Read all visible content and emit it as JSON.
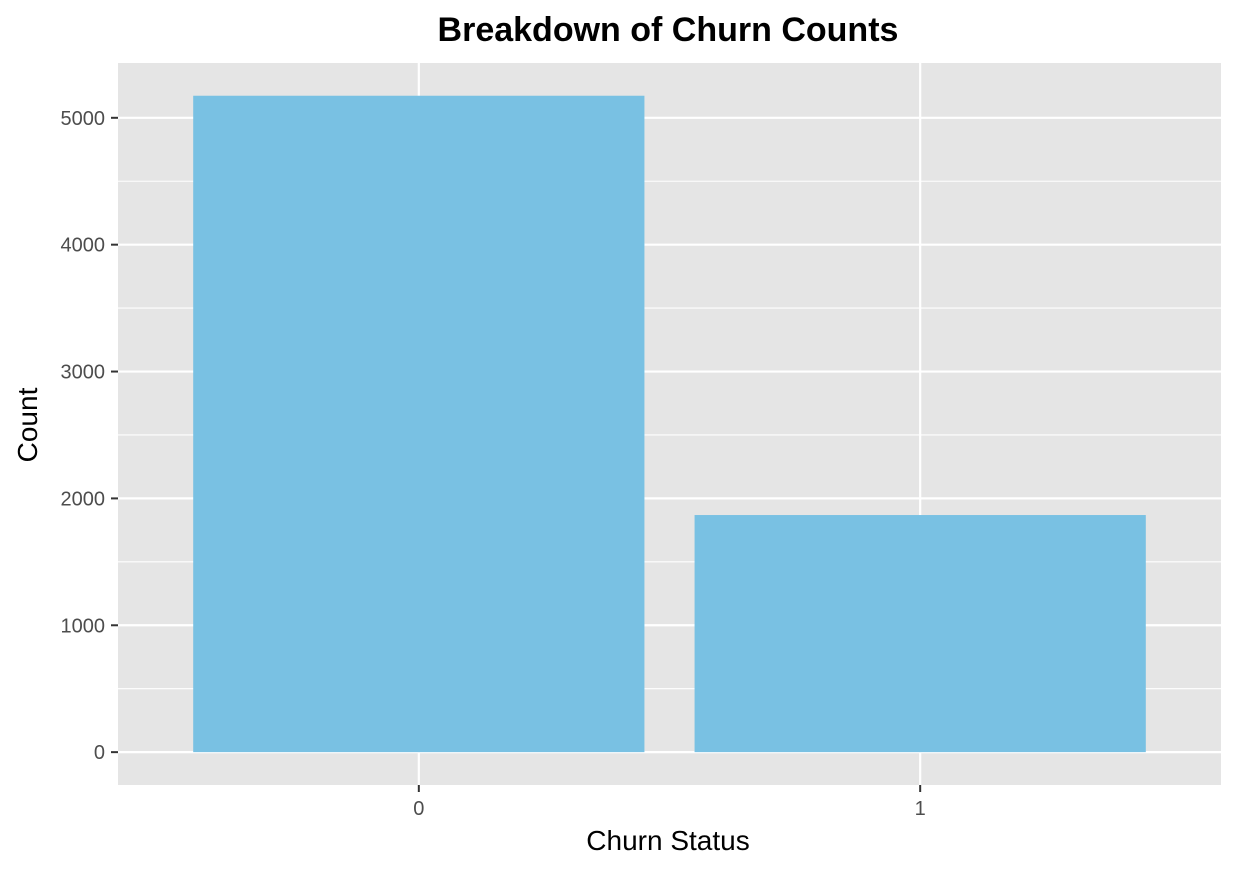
{
  "chart_data": {
    "type": "bar",
    "title": "Breakdown of Churn Counts",
    "xlabel": "Churn Status",
    "ylabel": "Count",
    "categories": [
      "0",
      "1"
    ],
    "values": [
      5174,
      1869
    ],
    "ylim": [
      -259,
      5432
    ],
    "yticks": [
      "0",
      "1000",
      "2000",
      "3000",
      "4000",
      "5000"
    ],
    "grid": true,
    "legend": "none",
    "colors": {
      "bar": "#79c1e3",
      "panel": "#e5e5e5",
      "grid": "#ffffff",
      "tick_mark": "#333333",
      "tick_text": "#4d4d4d"
    }
  }
}
